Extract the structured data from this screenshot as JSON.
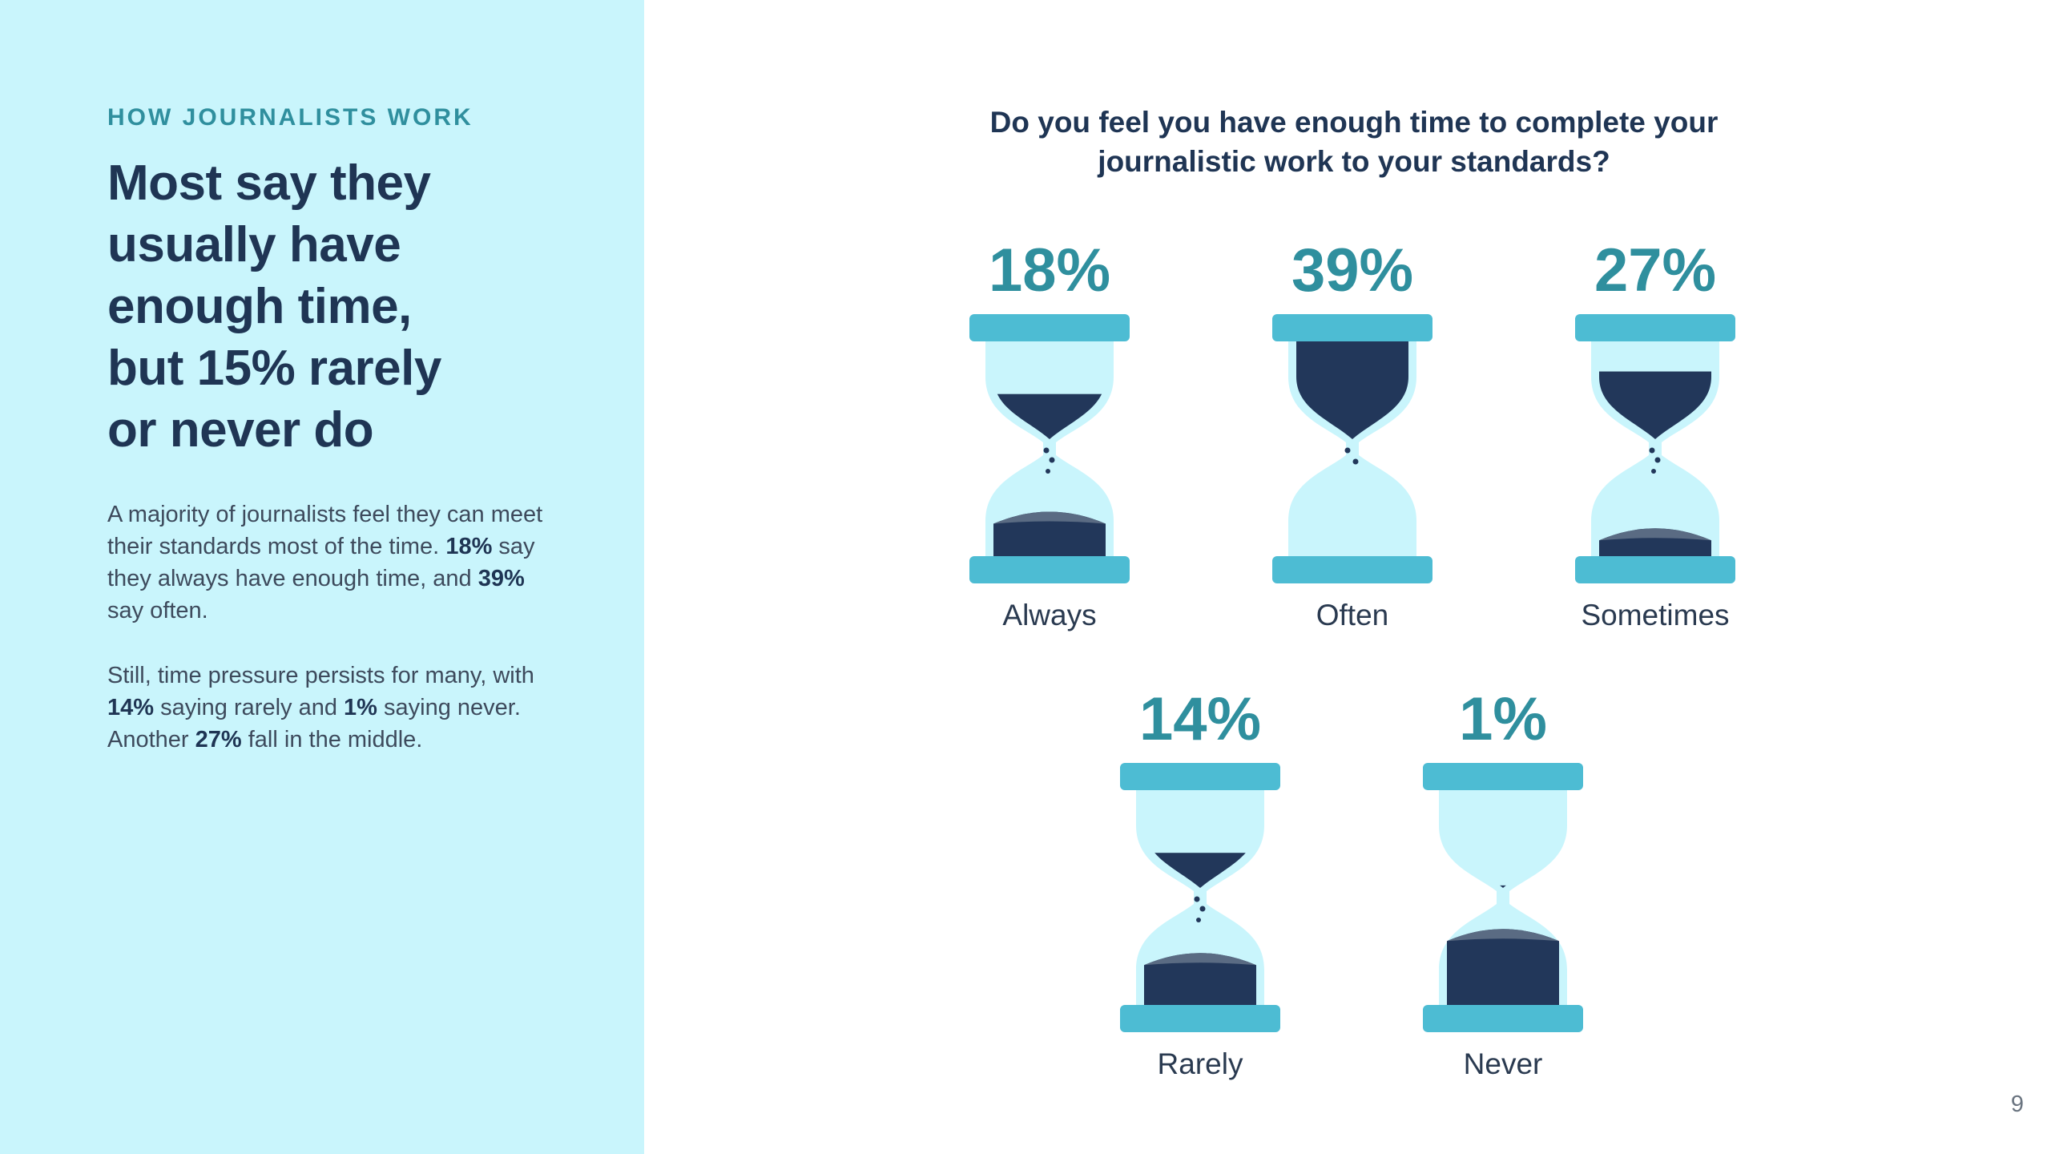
{
  "sidebar": {
    "eyebrow": "HOW JOURNALISTS WORK",
    "headline_lines": [
      "Most say they",
      "usually have",
      "enough time,",
      "but 15% rarely",
      "or never do"
    ],
    "paragraph1": {
      "intro": "A majority of journalists feel they can meet their standards most of the time.",
      "always_pct": "18%",
      "always_text": "say they always have enough time, and",
      "often_pct": "39%",
      "often_text": "say often."
    },
    "paragraph2": {
      "text1": "Still, time pressure persists for many, with",
      "rarely_pct": "14%",
      "text2": "saying rarely and",
      "never_pct": "1%",
      "text3": "saying never. Another",
      "sometimes_pct": "27%",
      "text4": "fall in the middle."
    }
  },
  "page_number": "9",
  "colors": {
    "sidebar_bg": "#c9f5fc",
    "accent_teal": "#2f8f9e",
    "navy": "#1f3554",
    "glass_cap": "#4dbcd3",
    "glass_body": "#c9f5fc",
    "sand": "#22375a",
    "sand_top": "#5a6b83"
  },
  "chart_data": {
    "type": "pictograph",
    "title": "Do you feel you have enough time to complete your journalistic work to your standards?",
    "unit": "%",
    "categories": [
      "Always",
      "Often",
      "Sometimes",
      "Rarely",
      "Never"
    ],
    "values": [
      18,
      39,
      27,
      14,
      1
    ],
    "labels": [
      "18%",
      "39%",
      "27%",
      "14%",
      "1%"
    ],
    "icon": "hourglass-icon"
  }
}
